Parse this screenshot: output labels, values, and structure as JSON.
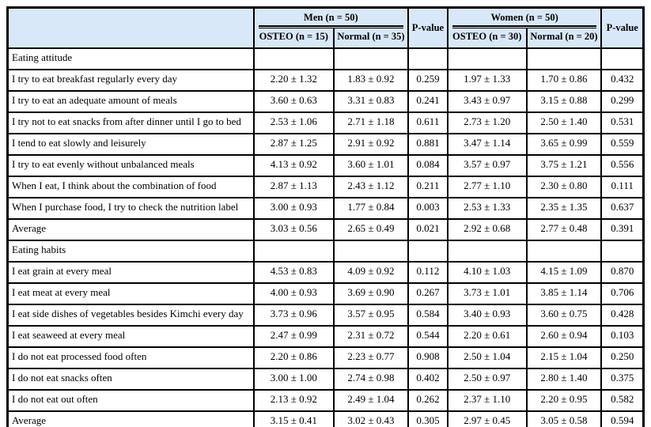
{
  "table": {
    "colors": {
      "header_bg": "#D8E8F8",
      "border": "#000000",
      "text": "#000000"
    },
    "header": {
      "corner_label": "",
      "pvalue_label": "P-value",
      "groups": [
        {
          "label": "Men (n = 50)",
          "sub": [
            "OSTEO (n = 15)",
            "Normal (n = 35)"
          ]
        },
        {
          "label": "Women (n = 50)",
          "sub": [
            "OSTEO (n = 30)",
            "Normal (n = 20)"
          ]
        }
      ]
    },
    "sections": [
      {
        "title": "Eating attitude",
        "rows": [
          {
            "label": "I try to eat breakfast regularly every day",
            "values": [
              "2.20 ± 1.32",
              "1.83 ± 0.92",
              "0.259",
              "1.97 ± 1.33",
              "1.70 ± 0.86",
              "0.432"
            ]
          },
          {
            "label": "I try to eat an adequate amount of meals",
            "values": [
              "3.60 ± 0.63",
              "3.31 ± 0.83",
              "0.241",
              "3.43 ± 0.97",
              "3.15 ± 0.88",
              "0.299"
            ]
          },
          {
            "label": "I try not to eat snacks from after dinner until I go to bed",
            "values": [
              "2.53 ± 1.06",
              "2.71 ± 1.18",
              "0.611",
              "2.73 ± 1.20",
              "2.50 ± 1.40",
              "0.531"
            ]
          },
          {
            "label": "I tend to eat slowly and leisurely",
            "values": [
              "2.87 ± 1.25",
              "2.91 ± 0.92",
              "0.881",
              "3.47 ± 1.14",
              "3.65 ± 0.99",
              "0.559"
            ]
          },
          {
            "label": "I try to eat evenly without unbalanced meals",
            "values": [
              "4.13 ± 0.92",
              "3.60 ± 1.01",
              "0.084",
              "3.57 ± 0.97",
              "3.75 ± 1.21",
              "0.556"
            ]
          },
          {
            "label": "When I eat, I think about the combination of food",
            "values": [
              "2.87 ± 1.13",
              "2.43 ± 1.12",
              "0.211",
              "2.77 ± 1.10",
              "2.30 ± 0.80",
              "0.111"
            ]
          },
          {
            "label": "When I purchase food, I try to check the nutrition label",
            "values": [
              "3.00 ± 0.93",
              "1.77 ± 0.84",
              "0.003",
              "2.53 ± 1.33",
              "2.35 ± 1.35",
              "0.637"
            ]
          },
          {
            "label": "Average",
            "values": [
              "3.03 ± 0.56",
              "2.65 ± 0.49",
              "0.021",
              "2.92 ± 0.68",
              "2.77 ± 0.48",
              "0.391"
            ]
          }
        ]
      },
      {
        "title": "Eating habits",
        "rows": [
          {
            "label": "I eat grain at every meal",
            "values": [
              "4.53 ± 0.83",
              "4.09 ± 0.92",
              "0.112",
              "4.10 ± 1.03",
              "4.15 ± 1.09",
              "0.870"
            ]
          },
          {
            "label": "I eat meat at every meal",
            "values": [
              "4.00 ± 0.93",
              "3.69 ± 0.90",
              "0.267",
              "3.73 ± 1.01",
              "3.85 ± 1.14",
              "0.706"
            ]
          },
          {
            "label": "I eat side dishes of vegetables besides Kimchi every day",
            "values": [
              "3.73 ± 0.96",
              "3.57 ± 0.95",
              "0.584",
              "3.40 ± 0.93",
              "3.60 ± 0.75",
              "0.428"
            ]
          },
          {
            "label": "I eat seaweed at every meal",
            "values": [
              "2.47 ± 0.99",
              "2.31 ± 0.72",
              "0.544",
              "2.20 ± 0.61",
              "2.60 ± 0.94",
              "0.103"
            ]
          },
          {
            "label": "I do not eat processed food often",
            "values": [
              "2.20 ± 0.86",
              "2.23 ± 0.77",
              "0.908",
              "2.50 ± 1.04",
              "2.15 ± 1.04",
              "0.250"
            ]
          },
          {
            "label": "I do not eat snacks often",
            "values": [
              "3.00 ± 1.00",
              "2.74 ± 0.98",
              "0.402",
              "2.50 ± 0.97",
              "2.80 ± 1.40",
              "0.375"
            ]
          },
          {
            "label": "I do not eat out often",
            "values": [
              "2.13 ± 0.92",
              "2.49 ± 1.04",
              "0.262",
              "2.37 ± 1.10",
              "2.20 ± 0.95",
              "0.582"
            ]
          },
          {
            "label": "Average",
            "values": [
              "3.15 ± 0.41",
              "3.02 ± 0.43",
              "0.305",
              "2.97 ± 0.45",
              "3.05 ± 0.58",
              "0.594"
            ]
          }
        ]
      }
    ]
  }
}
